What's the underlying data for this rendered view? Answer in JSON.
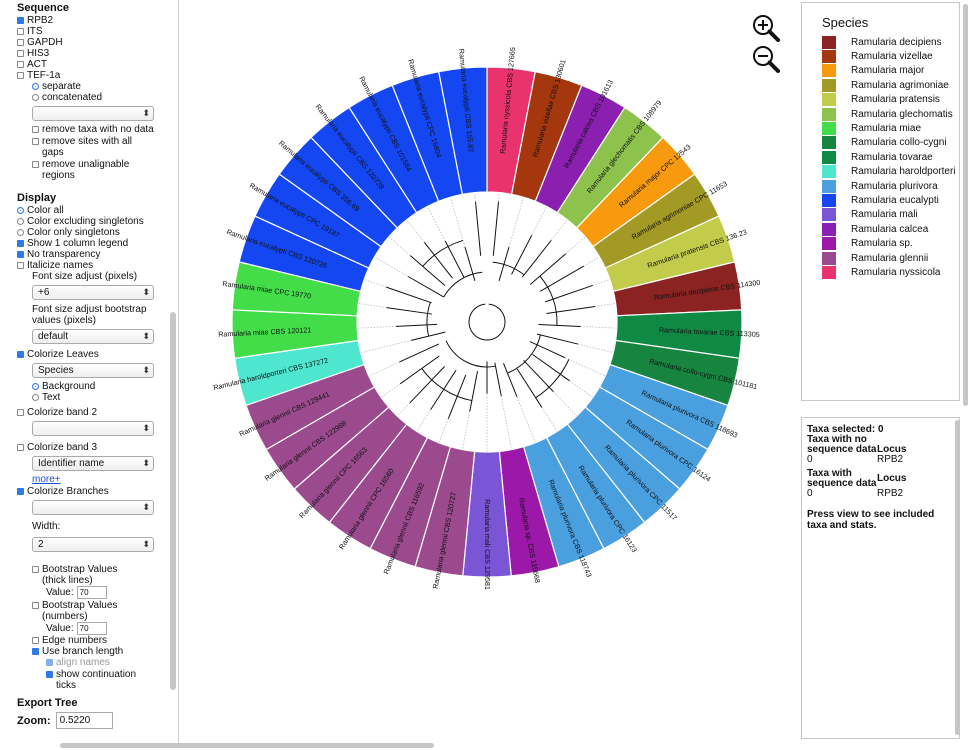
{
  "sequence": {
    "title": "Sequence",
    "loci": [
      {
        "label": "RPB2",
        "checked": true
      },
      {
        "label": "ITS",
        "checked": false
      },
      {
        "label": "GAPDH",
        "checked": false
      },
      {
        "label": "HIS3",
        "checked": false
      },
      {
        "label": "ACT",
        "checked": false
      },
      {
        "label": "TEF-1a",
        "checked": false
      }
    ],
    "mode_separate": "separate",
    "mode_concatenated": "concatenated",
    "select_value": "",
    "opt1": "remove taxa with no data",
    "opt2": "remove sites with all gaps",
    "opt3": "remove unalignable regions"
  },
  "display": {
    "title": "Display",
    "color_all": "Color all",
    "color_excl": "Color excluding singletons",
    "color_only": "Color only singletons",
    "one_col": "Show 1 column legend",
    "no_transp": "No transparency",
    "italicize": "Italicize names",
    "font_size_label": "Font size adjust (pixels)",
    "font_size_value": "+6",
    "bootstrap_font_label": "Font size adjust bootstrap values (pixels)",
    "bootstrap_font_value": "default",
    "colorize_leaves": "Colorize Leaves",
    "leaves_value": "Species",
    "background": "Background",
    "text": "Text",
    "band2": "Colorize band 2",
    "band2_value": "",
    "band3": "Colorize band 3",
    "band3_value": "Identifier name",
    "more": "more+",
    "colorize_branches": "Colorize Branches",
    "branches_value": "",
    "width_label": "Width:",
    "width_value": "2",
    "boot_thick": "Bootstrap Values (thick lines)",
    "boot_thick_value": "70",
    "boot_num": "Bootstrap Values (numbers)",
    "boot_num_value": "70",
    "value_label": "Value:",
    "edge_numbers": "Edge numbers",
    "use_branch": "Use branch length",
    "align_names": "align names",
    "continuation": "show continuation ticks"
  },
  "export": {
    "title": "Export Tree",
    "zoom_label": "Zoom:",
    "zoom_value": "0.5220"
  },
  "zoom_controls": {
    "in_icon": "zoom-in-icon",
    "out_icon": "zoom-out-icon"
  },
  "legend": {
    "title": "Species",
    "items": [
      {
        "name": "Ramularia decipiens",
        "color": "#8b2323"
      },
      {
        "name": "Ramularia vizellae",
        "color": "#a5370f"
      },
      {
        "name": "Ramularia major",
        "color": "#f79a0e"
      },
      {
        "name": "Ramularia agrimoniae",
        "color": "#a39a26"
      },
      {
        "name": "Ramularia pratensis",
        "color": "#c2cc4a"
      },
      {
        "name": "Ramularia glechomatis",
        "color": "#8dc24c"
      },
      {
        "name": "Ramularia miae",
        "color": "#44dd4a"
      },
      {
        "name": "Ramularia collo-cygni",
        "color": "#17843f"
      },
      {
        "name": "Ramularia tovarae",
        "color": "#0f8a44"
      },
      {
        "name": "Ramularia haroldporteri",
        "color": "#4fe6cf"
      },
      {
        "name": "Ramularia plurivora",
        "color": "#4a9fdf"
      },
      {
        "name": "Ramularia eucalypti",
        "color": "#1447f2"
      },
      {
        "name": "Ramularia mali",
        "color": "#7a55d6"
      },
      {
        "name": "Ramularia calcea",
        "color": "#8a1fb0"
      },
      {
        "name": "Ramularia sp.",
        "color": "#9b18a9"
      },
      {
        "name": "Ramularia glennii",
        "color": "#9b4a8e"
      },
      {
        "name": "Ramularia nyssicola",
        "color": "#e8336f"
      }
    ]
  },
  "tree": {
    "leaves": [
      {
        "label": "Ramularia nyssicola CBS 127665",
        "color": "#e8336f"
      },
      {
        "label": "Ramularia vizellae CBS 130601",
        "color": "#a5370f"
      },
      {
        "label": "Ramularia calcea CBS 101613",
        "color": "#8a1fb0"
      },
      {
        "label": "Ramularia glechomatis CBS 108979",
        "color": "#8dc24c"
      },
      {
        "label": "Ramularia major CPC 12543",
        "color": "#f79a0e"
      },
      {
        "label": "Ramularia agrimoniae CPC 11653",
        "color": "#a39a26"
      },
      {
        "label": "Ramularia pratensis CBS 136.23",
        "color": "#c2cc4a"
      },
      {
        "label": "Ramularia decipiens CBS 114300",
        "color": "#8b2323"
      },
      {
        "label": "Ramularia tovarae CBS 113305",
        "color": "#0f8a44"
      },
      {
        "label": "Ramularia collo-cygni CBS 101181",
        "color": "#17843f"
      },
      {
        "label": "Ramularia plurivora CBS 118693",
        "color": "#4a9fdf"
      },
      {
        "label": "Ramularia plurivora CPC 16124",
        "color": "#4a9fdf"
      },
      {
        "label": "Ramularia plurivora CPC 11517",
        "color": "#4a9fdf"
      },
      {
        "label": "Ramularia plurivora CPC 16123",
        "color": "#4a9fdf"
      },
      {
        "label": "Ramularia plurivora CBS 118743",
        "color": "#4a9fdf"
      },
      {
        "label": "Ramularia sp. CBS 115668",
        "color": "#9b18a9"
      },
      {
        "label": "Ramularia mali CBS 129581",
        "color": "#7a55d6"
      },
      {
        "label": "Ramularia glennii CBS 120727",
        "color": "#9b4a8e"
      },
      {
        "label": "Ramularia glennii CBS 116592",
        "color": "#9b4a8e"
      },
      {
        "label": "Ramularia glennii CPC 16560",
        "color": "#9b4a8e"
      },
      {
        "label": "Ramularia glennii CPC 16563",
        "color": "#9b4a8e"
      },
      {
        "label": "Ramularia glennii CBS 122988",
        "color": "#9b4a8e"
      },
      {
        "label": "Ramularia glennii CBS 129441",
        "color": "#9b4a8e"
      },
      {
        "label": "Ramularia haroldporteri CBS 137272",
        "color": "#4fe6cf"
      },
      {
        "label": "Ramularia miae CBS 120121",
        "color": "#44dd4a"
      },
      {
        "label": "Ramularia miae CPC 19770",
        "color": "#44dd4a"
      },
      {
        "label": "Ramularia eucalypti CBS 120726",
        "color": "#1447f2"
      },
      {
        "label": "Ramularia eucalypti CPC 19187",
        "color": "#1447f2"
      },
      {
        "label": "Ramularia eucalypti CBS 356.69",
        "color": "#1447f2"
      },
      {
        "label": "Ramularia eucalypti CBS 120728",
        "color": "#1447f2"
      },
      {
        "label": "Ramularia eucalypti CBS 101584",
        "color": "#1447f2"
      },
      {
        "label": "Ramularia eucalypti CPC 16804",
        "color": "#1447f2"
      },
      {
        "label": "Ramularia eucalypti CBS 155.82",
        "color": "#1447f2"
      }
    ]
  },
  "stats": {
    "selected": "Taxa selected: 0",
    "no_data": "Taxa with no sequence data",
    "locus": "Locus",
    "v1": "0",
    "l1": "RPB2",
    "with_data": "Taxa with sequence data",
    "locus2": "Locus",
    "v2": "0",
    "l2": "RPB2",
    "press": "Press view to see included taxa and stats."
  }
}
